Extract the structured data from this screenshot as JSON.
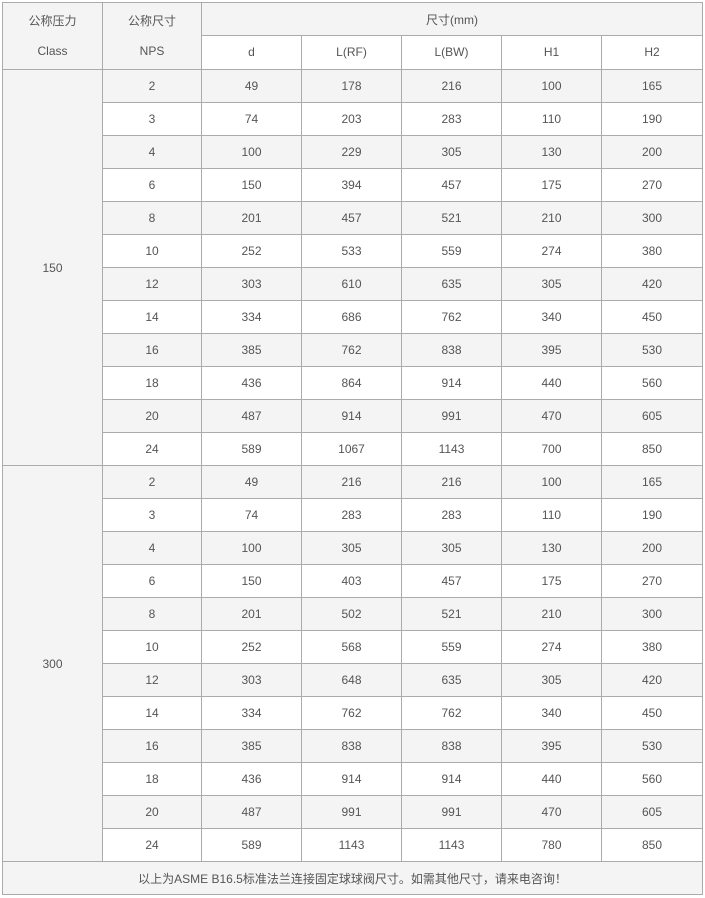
{
  "header": {
    "pressure_cn": "公称压力",
    "pressure_en": "Class",
    "size_cn": "公称尺寸",
    "size_en": "NPS",
    "dimensions": "尺寸(mm)",
    "columns": [
      "d",
      "L(RF)",
      "L(BW)",
      "H1",
      "H2"
    ]
  },
  "groups": [
    {
      "class": "150",
      "rows": [
        [
          "2",
          "49",
          "178",
          "216",
          "100",
          "165"
        ],
        [
          "3",
          "74",
          "203",
          "283",
          "110",
          "190"
        ],
        [
          "4",
          "100",
          "229",
          "305",
          "130",
          "200"
        ],
        [
          "6",
          "150",
          "394",
          "457",
          "175",
          "270"
        ],
        [
          "8",
          "201",
          "457",
          "521",
          "210",
          "300"
        ],
        [
          "10",
          "252",
          "533",
          "559",
          "274",
          "380"
        ],
        [
          "12",
          "303",
          "610",
          "635",
          "305",
          "420"
        ],
        [
          "14",
          "334",
          "686",
          "762",
          "340",
          "450"
        ],
        [
          "16",
          "385",
          "762",
          "838",
          "395",
          "530"
        ],
        [
          "18",
          "436",
          "864",
          "914",
          "440",
          "560"
        ],
        [
          "20",
          "487",
          "914",
          "991",
          "470",
          "605"
        ],
        [
          "24",
          "589",
          "1067",
          "1143",
          "700",
          "850"
        ]
      ]
    },
    {
      "class": "300",
      "rows": [
        [
          "2",
          "49",
          "216",
          "216",
          "100",
          "165"
        ],
        [
          "3",
          "74",
          "283",
          "283",
          "110",
          "190"
        ],
        [
          "4",
          "100",
          "305",
          "305",
          "130",
          "200"
        ],
        [
          "6",
          "150",
          "403",
          "457",
          "175",
          "270"
        ],
        [
          "8",
          "201",
          "502",
          "521",
          "210",
          "300"
        ],
        [
          "10",
          "252",
          "568",
          "559",
          "274",
          "380"
        ],
        [
          "12",
          "303",
          "648",
          "635",
          "305",
          "420"
        ],
        [
          "14",
          "334",
          "762",
          "762",
          "340",
          "450"
        ],
        [
          "16",
          "385",
          "838",
          "838",
          "395",
          "530"
        ],
        [
          "18",
          "436",
          "914",
          "914",
          "440",
          "560"
        ],
        [
          "20",
          "487",
          "991",
          "991",
          "470",
          "605"
        ],
        [
          "24",
          "589",
          "1143",
          "1143",
          "780",
          "850"
        ]
      ]
    }
  ],
  "footer": "以上为ASME B16.5标准法兰连接固定球球阀尺寸。如需其他尺寸，请来电咨询！"
}
